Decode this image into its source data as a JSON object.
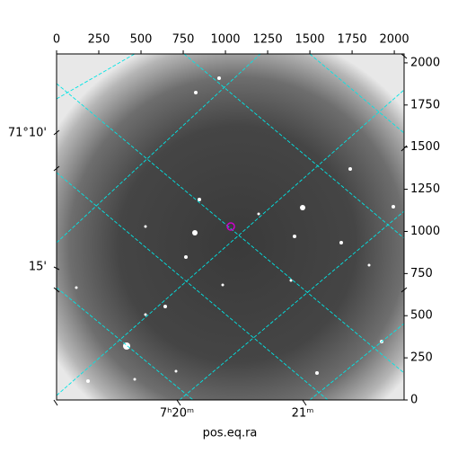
{
  "chart_data": {
    "type": "image",
    "xlabel": "pos.eq.ra",
    "xlim": [
      0,
      2058
    ],
    "xticks": [
      0,
      250,
      500,
      750,
      1000,
      1250,
      1500,
      1750,
      2000
    ],
    "ylim": [
      0,
      2053
    ],
    "yticks": [
      0,
      250,
      500,
      750,
      1000,
      1250,
      1500,
      1750,
      2000
    ],
    "world_xticks": [
      "7ʰ20ᵐ",
      "21ᵐ"
    ],
    "world_yticks": [
      "71°10'",
      "15'"
    ],
    "marker": {
      "x": 1032,
      "y": 1029,
      "color": "#cc00cc"
    },
    "grid_color": "#00e5e5"
  }
}
